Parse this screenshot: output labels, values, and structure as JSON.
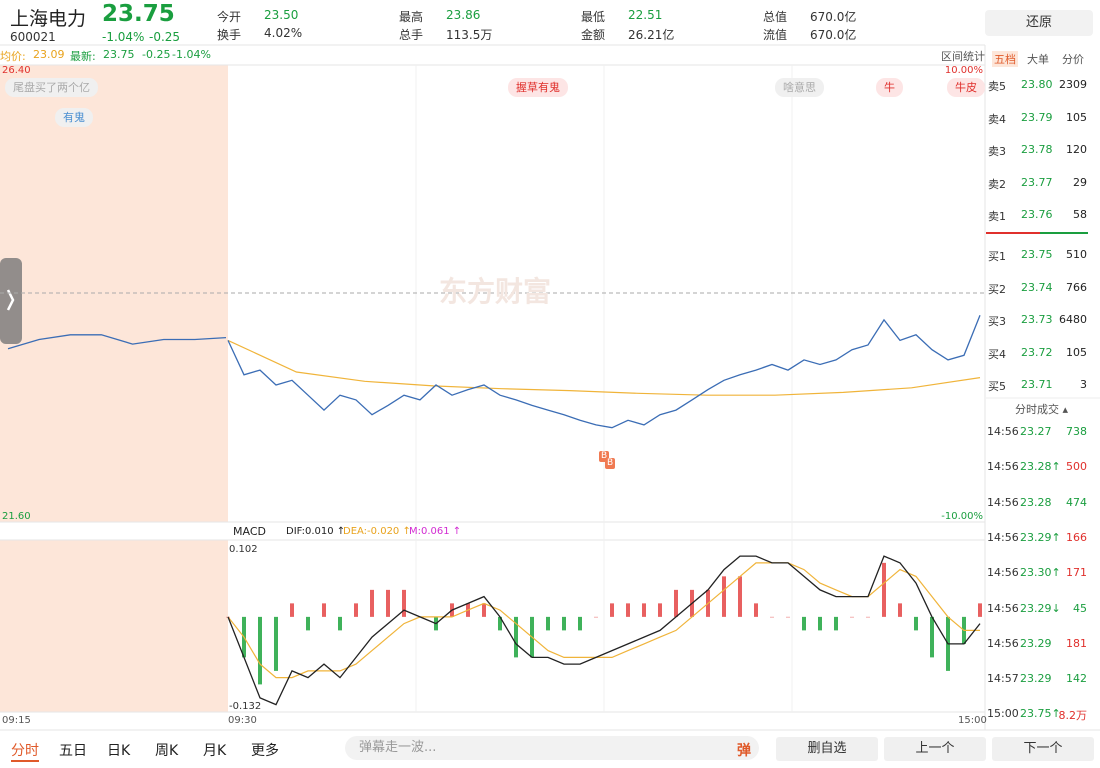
{
  "header": {
    "name": "上海电力",
    "price": "23.75",
    "code": "600021",
    "change_pct": "-1.04%",
    "change": "-0.25",
    "stats": [
      {
        "label": "今开",
        "value": "23.50"
      },
      {
        "label": "最高",
        "value": "23.86"
      },
      {
        "label": "最低",
        "value": "22.51"
      },
      {
        "label": "总值",
        "value": "670.0亿"
      },
      {
        "label": "换手",
        "value": "4.02%"
      },
      {
        "label": "总手",
        "value": "113.5万"
      },
      {
        "label": "金额",
        "value": "26.21亿"
      },
      {
        "label": "流值",
        "value": "670.0亿"
      }
    ],
    "restore": "还原"
  },
  "info": {
    "avg_label": "均价:",
    "avg": "23.09",
    "latest_label": "最新:",
    "latest": "23.75",
    "change": "-0.25",
    "change_pct": "-1.04%",
    "range_stats": "区间统计"
  },
  "chart": {
    "ylim": [
      21.6,
      26.4
    ],
    "top_label": "26.40",
    "bottom_label": "21.60",
    "top_pct": "10.00%",
    "bottom_pct": "-10.00%",
    "prev_close": 24,
    "watermark": "东方财富",
    "auction": [
      23.4,
      23.5,
      23.55,
      23.55,
      23.45,
      23.5,
      23.5,
      23.52
    ],
    "price": [
      23.49,
      23.12,
      23.17,
      23.01,
      23.06,
      22.9,
      22.74,
      22.9,
      22.85,
      22.69,
      22.79,
      22.9,
      22.85,
      23.01,
      22.9,
      22.96,
      23.01,
      22.9,
      22.85,
      22.79,
      22.74,
      22.69,
      22.63,
      22.58,
      22.55,
      22.63,
      22.58,
      22.69,
      22.74,
      22.85,
      22.96,
      23.06,
      23.12,
      23.17,
      23.23,
      23.17,
      23.28,
      23.23,
      23.28,
      23.39,
      23.44,
      23.71,
      23.49,
      23.55,
      23.39,
      23.28,
      23.33,
      23.76
    ],
    "avg": [
      23.49,
      23.15,
      23.05,
      23.0,
      22.97,
      22.95,
      22.92,
      22.9,
      22.9,
      22.93,
      22.98,
      23.09
    ],
    "comments": [
      "尾盘买了两个亿",
      "有鬼",
      "握草有鬼",
      "啥意思",
      "牛",
      "牛皮"
    ],
    "markers": [
      "B",
      "B"
    ],
    "xticks": [
      "09:15",
      "09:30",
      "15:00"
    ]
  },
  "macd": {
    "title": "MACD",
    "dif_label": "DIF:0.010 ↑",
    "dea_label": "DEA:-0.020 ↑",
    "m_label": "M:0.061 ↑",
    "ylim": [
      -0.132,
      0.102
    ],
    "top_label": "0.102",
    "bottom_label": "-0.132",
    "dif": [
      0.0,
      -0.06,
      -0.12,
      -0.13,
      -0.08,
      -0.09,
      -0.07,
      -0.09,
      -0.06,
      -0.03,
      -0.01,
      0.01,
      0.0,
      -0.01,
      0.01,
      0.02,
      0.03,
      0.0,
      -0.04,
      -0.06,
      -0.06,
      -0.07,
      -0.07,
      -0.06,
      -0.05,
      -0.04,
      -0.03,
      -0.02,
      0.0,
      0.02,
      0.04,
      0.07,
      0.09,
      0.09,
      0.08,
      0.08,
      0.06,
      0.04,
      0.03,
      0.03,
      0.03,
      0.09,
      0.08,
      0.05,
      0.0,
      -0.04,
      -0.04,
      -0.01
    ],
    "dea": [
      0.0,
      -0.03,
      -0.07,
      -0.09,
      -0.09,
      -0.08,
      -0.08,
      -0.08,
      -0.07,
      -0.05,
      -0.03,
      -0.01,
      0.0,
      0.0,
      0.0,
      0.01,
      0.02,
      0.01,
      -0.01,
      -0.03,
      -0.05,
      -0.06,
      -0.06,
      -0.06,
      -0.06,
      -0.05,
      -0.04,
      -0.03,
      -0.02,
      0.0,
      0.02,
      0.04,
      0.06,
      0.08,
      0.08,
      0.08,
      0.07,
      0.05,
      0.04,
      0.03,
      0.03,
      0.05,
      0.07,
      0.06,
      0.03,
      0.0,
      -0.02,
      -0.02
    ],
    "hist": [
      0,
      -0.06,
      -0.1,
      -0.08,
      0.02,
      -0.02,
      0.02,
      -0.02,
      0.02,
      0.04,
      0.04,
      0.04,
      0.0,
      -0.02,
      0.02,
      0.02,
      0.02,
      -0.02,
      -0.06,
      -0.06,
      -0.02,
      -0.02,
      -0.02,
      0.0,
      0.02,
      0.02,
      0.02,
      0.02,
      0.04,
      0.04,
      0.04,
      0.06,
      0.06,
      0.02,
      0.0,
      0.0,
      -0.02,
      -0.02,
      -0.02,
      0.0,
      0.0,
      0.08,
      0.02,
      -0.02,
      -0.06,
      -0.08,
      -0.04,
      0.02
    ]
  },
  "book": {
    "tabs": [
      "五档",
      "大单",
      "分价"
    ],
    "asks": [
      {
        "label": "卖5",
        "price": "23.80",
        "vol": "2309"
      },
      {
        "label": "卖4",
        "price": "23.79",
        "vol": "105"
      },
      {
        "label": "卖3",
        "price": "23.78",
        "vol": "120"
      },
      {
        "label": "卖2",
        "price": "23.77",
        "vol": "29"
      },
      {
        "label": "卖1",
        "price": "23.76",
        "vol": "58"
      }
    ],
    "bids": [
      {
        "label": "买1",
        "price": "23.75",
        "vol": "510"
      },
      {
        "label": "买2",
        "price": "23.74",
        "vol": "766"
      },
      {
        "label": "买3",
        "price": "23.73",
        "vol": "6480"
      },
      {
        "label": "买4",
        "price": "23.72",
        "vol": "105"
      },
      {
        "label": "买5",
        "price": "23.71",
        "vol": "3"
      }
    ],
    "trades_title": "分时成交 ▴",
    "trades": [
      {
        "time": "14:56",
        "price": "23.27",
        "vol": "738",
        "color": "#1a9e3f"
      },
      {
        "time": "14:56",
        "price": "23.28↑",
        "vol": "500",
        "color": "#e0302c"
      },
      {
        "time": "14:56",
        "price": "23.28",
        "vol": "474",
        "color": "#1a9e3f"
      },
      {
        "time": "14:56",
        "price": "23.29↑",
        "vol": "166",
        "color": "#e0302c"
      },
      {
        "time": "14:56",
        "price": "23.30↑",
        "vol": "171",
        "color": "#e0302c"
      },
      {
        "time": "14:56",
        "price": "23.29↓",
        "vol": "45",
        "color": "#1a9e3f"
      },
      {
        "time": "14:56",
        "price": "23.29",
        "vol": "181",
        "color": "#e0302c"
      },
      {
        "time": "14:57",
        "price": "23.29",
        "vol": "142",
        "color": "#1a9e3f"
      },
      {
        "time": "15:00",
        "price": "23.75↑",
        "vol": "8.2万",
        "color": "#e0302c"
      }
    ]
  },
  "bottom": {
    "tabs": [
      "分时",
      "五日",
      "日K",
      "周K",
      "月K",
      "更多"
    ],
    "danmaku": "弹幕走一波...",
    "danmaku_toggle": "弹",
    "buttons": [
      "删自选",
      "上一个",
      "下一个"
    ]
  }
}
